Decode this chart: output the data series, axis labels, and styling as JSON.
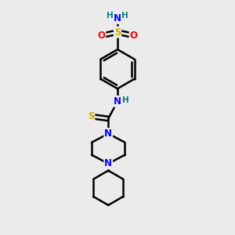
{
  "bg_color": "#ebebeb",
  "atom_colors": {
    "C": "#000000",
    "N": "#0000ff",
    "O": "#ff0000",
    "S_sulfonamide": "#ccaa00",
    "S_thio": "#ccaa00",
    "H": "#008080"
  },
  "bond_color": "#000000",
  "bond_width": 1.8,
  "figsize": [
    3.0,
    3.0
  ],
  "dpi": 100,
  "xlim": [
    0,
    10
  ],
  "ylim": [
    0,
    10
  ]
}
